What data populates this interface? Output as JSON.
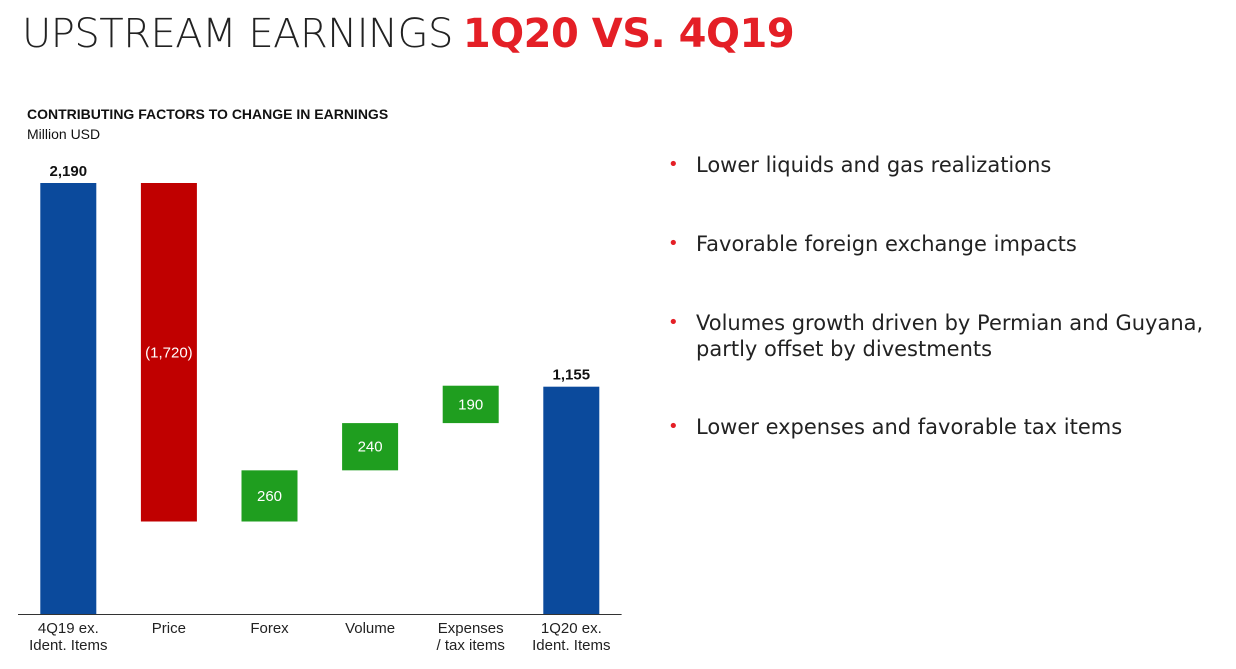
{
  "header": {
    "title_main": "UPSTREAM EARNINGS",
    "title_accent": "1Q20 VS. 4Q19"
  },
  "chart_data": {
    "type": "waterfall",
    "title": "CONTRIBUTING FACTORS TO CHANGE IN EARNINGS",
    "unit": "Million USD",
    "categories": [
      "4Q19 ex.\nIdent. Items",
      "Price",
      "Forex",
      "Volume",
      "Expenses\n/ tax items",
      "1Q20 ex.\nIdent. Items"
    ],
    "values": [
      2190,
      -1720,
      260,
      240,
      190,
      1155
    ],
    "data_labels": [
      "2,190",
      "(1,720)",
      "260",
      "240",
      "190",
      "1,155"
    ],
    "kinds": [
      "total",
      "delta",
      "delta",
      "delta",
      "delta",
      "total"
    ],
    "ylim": [
      0,
      2190
    ],
    "grid": false,
    "colors": {
      "total": "#0b4a9c",
      "negative": "#c00000",
      "positive": "#1f9e1f"
    }
  },
  "bullets": [
    "Lower liquids and gas realizations",
    "Favorable foreign exchange impacts",
    "Volumes growth driven by Permian and Guyana, partly offset by divestments",
    "Lower expenses and favorable tax items"
  ],
  "colors": {
    "accent": "#e41f26"
  }
}
